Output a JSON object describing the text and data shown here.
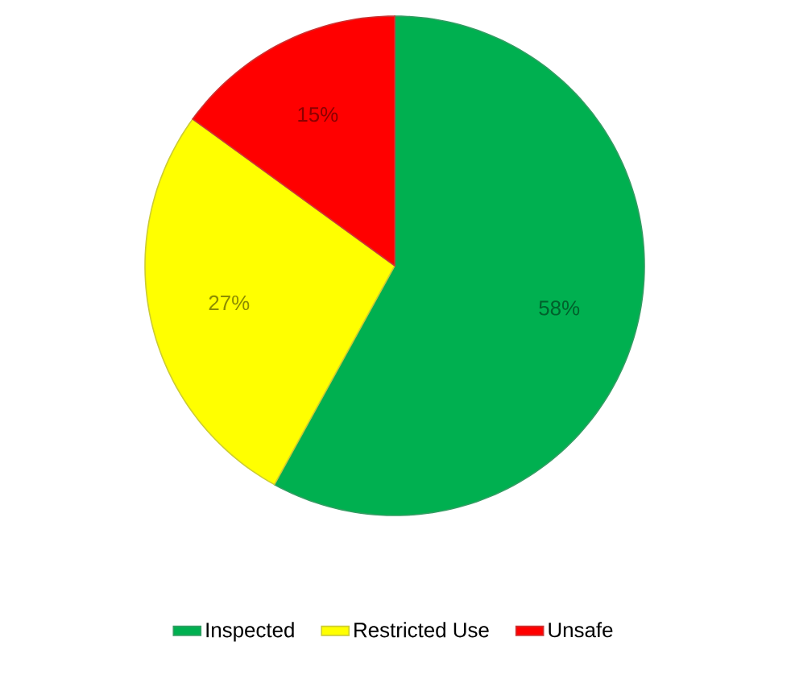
{
  "chart_data": {
    "type": "pie",
    "categories": [
      "Inspected",
      "Restricted Use",
      "Unsafe"
    ],
    "values": [
      58,
      27,
      15
    ],
    "colors": [
      "#00b050",
      "#ffff00",
      "#ff0000"
    ],
    "value_labels": [
      "58%",
      "27%",
      "15%"
    ],
    "legend": "bottom"
  }
}
